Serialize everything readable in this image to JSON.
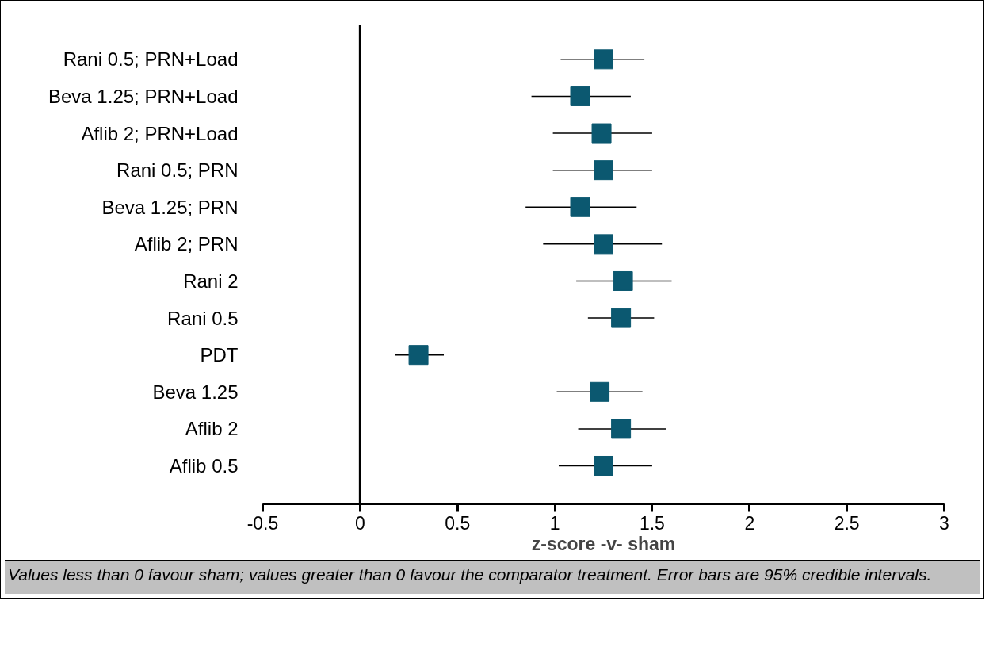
{
  "chart_data": {
    "type": "scatter",
    "xlabel": "z-score -v- sham",
    "categories": [
      "Rani 0.5; PRN+Load",
      "Beva 1.25; PRN+Load",
      "Aflib 2; PRN+Load",
      "Rani 0.5; PRN",
      "Beva 1.25; PRN",
      "Aflib 2; PRN",
      "Rani 2",
      "Rani 0.5",
      "PDT",
      "Beva 1.25",
      "Aflib 2",
      "Aflib 0.5"
    ],
    "series": [
      {
        "color": "#0b5870",
        "values": [
          1.25,
          1.13,
          1.24,
          1.25,
          1.13,
          1.25,
          1.35,
          1.34,
          0.3,
          1.23,
          1.34,
          1.25
        ],
        "errors": [
          [
            1.03,
            1.46
          ],
          [
            0.88,
            1.39
          ],
          [
            0.99,
            1.5
          ],
          [
            0.99,
            1.5
          ],
          [
            0.85,
            1.42
          ],
          [
            0.94,
            1.55
          ],
          [
            1.11,
            1.6
          ],
          [
            1.17,
            1.51
          ],
          [
            0.18,
            0.43
          ],
          [
            1.01,
            1.45
          ],
          [
            1.12,
            1.57
          ],
          [
            1.02,
            1.5
          ]
        ]
      }
    ],
    "marker": "square",
    "xlim": [
      -0.5,
      3
    ],
    "xticks": [
      -0.5,
      0,
      0.5,
      1,
      1.5,
      2,
      2.5,
      3
    ],
    "ref_lines": [
      {
        "axis": "x",
        "value": 0,
        "color": "#000000"
      }
    ],
    "grid": false,
    "orientation": "horizontal",
    "annotations": [
      "Values less than 0 favour sham; values greater than 0 favour the comparator treatment. Error bars are 95% credible intervals."
    ]
  }
}
